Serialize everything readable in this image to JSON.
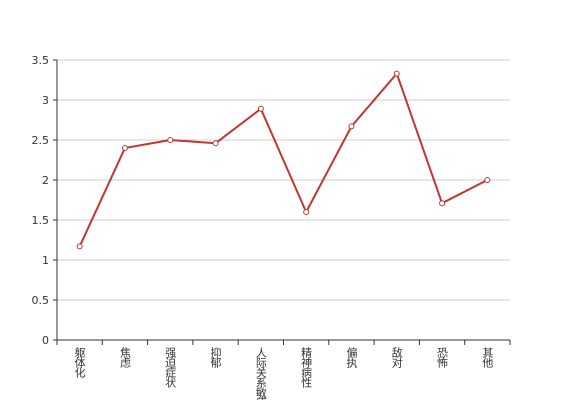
{
  "chart_data": {
    "type": "line",
    "categories": [
      "躯体化",
      "焦虑",
      "强迫症状",
      "抑郁",
      "人际关系敏感",
      "精神病性",
      "偏执",
      "敌对",
      "恐怖",
      "其他"
    ],
    "values": [
      1.17,
      2.4,
      2.5,
      2.46,
      2.89,
      1.6,
      2.67,
      3.33,
      1.71,
      2.0
    ],
    "color": "#c23531",
    "ylim": [
      0,
      3.5
    ],
    "yticks": [
      0,
      0.5,
      1,
      1.5,
      2,
      2.5,
      3,
      3.5
    ],
    "grid": true
  }
}
